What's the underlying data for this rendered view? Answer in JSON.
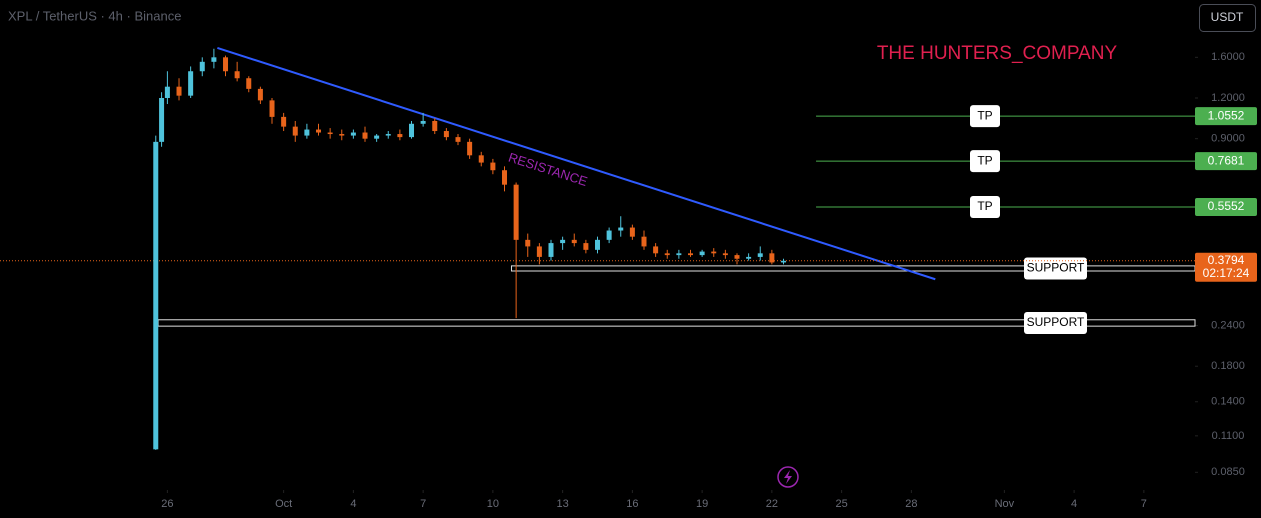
{
  "chart_data": {
    "type": "candlestick",
    "title": "XPL / TetherUS · 4h · Binance",
    "currency": "USDT",
    "watermark": "THE HUNTERS_COMPANY",
    "x": [
      25.5,
      25.75,
      26,
      26.5,
      27,
      27.5,
      28,
      28.5,
      29,
      29.5,
      30,
      30.5,
      31,
      31.5,
      32,
      32.5,
      33,
      33.5,
      34,
      34.5,
      35,
      35.5,
      36,
      36.5,
      37,
      37.5,
      38,
      38.5,
      39,
      39.5,
      40,
      40.5,
      41,
      41.5,
      42,
      42.5,
      43,
      43.5,
      44,
      44.5,
      45,
      45.5,
      46,
      46.5,
      47,
      47.5,
      48,
      48.5,
      49,
      49.5,
      50,
      50.5,
      51,
      51.5,
      52,
      52.5
    ],
    "open": [
      0.1,
      0.88,
      1.2,
      1.3,
      1.22,
      1.45,
      1.55,
      1.6,
      1.45,
      1.38,
      1.28,
      1.18,
      1.05,
      0.98,
      0.92,
      0.96,
      0.94,
      0.93,
      0.92,
      0.94,
      0.9,
      0.92,
      0.93,
      0.91,
      1.0,
      1.02,
      0.95,
      0.91,
      0.88,
      0.8,
      0.76,
      0.72,
      0.65,
      0.44,
      0.42,
      0.39,
      0.43,
      0.44,
      0.43,
      0.41,
      0.44,
      0.47,
      0.48,
      0.45,
      0.42,
      0.4,
      0.395,
      0.4,
      0.395,
      0.405,
      0.4,
      0.395,
      0.385,
      0.39,
      0.4,
      0.375
    ],
    "high": [
      0.92,
      1.25,
      1.45,
      1.38,
      1.5,
      1.6,
      1.7,
      1.62,
      1.55,
      1.4,
      1.3,
      1.2,
      1.08,
      1.02,
      1.0,
      1.0,
      0.97,
      0.96,
      0.96,
      0.98,
      0.93,
      0.95,
      0.96,
      1.02,
      1.08,
      1.04,
      0.97,
      0.93,
      0.9,
      0.82,
      0.78,
      0.74,
      0.66,
      0.46,
      0.43,
      0.44,
      0.45,
      0.46,
      0.44,
      0.45,
      0.48,
      0.52,
      0.49,
      0.47,
      0.43,
      0.41,
      0.41,
      0.41,
      0.41,
      0.415,
      0.41,
      0.4,
      0.4,
      0.42,
      0.41,
      0.385
    ],
    "low": [
      0.0996,
      0.85,
      1.15,
      1.18,
      1.2,
      1.4,
      1.48,
      1.4,
      1.35,
      1.25,
      1.15,
      1.0,
      0.95,
      0.88,
      0.9,
      0.92,
      0.9,
      0.89,
      0.9,
      0.88,
      0.88,
      0.9,
      0.89,
      0.9,
      0.98,
      0.93,
      0.89,
      0.86,
      0.78,
      0.74,
      0.7,
      0.62,
      0.253,
      0.39,
      0.37,
      0.38,
      0.41,
      0.42,
      0.4,
      0.4,
      0.43,
      0.45,
      0.44,
      0.41,
      0.39,
      0.385,
      0.385,
      0.39,
      0.39,
      0.39,
      0.385,
      0.37,
      0.38,
      0.38,
      0.37,
      0.37
    ],
    "close": [
      0.88,
      1.2,
      1.3,
      1.22,
      1.45,
      1.55,
      1.6,
      1.45,
      1.38,
      1.28,
      1.18,
      1.05,
      0.98,
      0.92,
      0.96,
      0.94,
      0.93,
      0.92,
      0.94,
      0.9,
      0.92,
      0.93,
      0.91,
      1.0,
      1.02,
      0.95,
      0.91,
      0.88,
      0.8,
      0.76,
      0.72,
      0.65,
      0.44,
      0.42,
      0.39,
      0.43,
      0.44,
      0.43,
      0.41,
      0.44,
      0.47,
      0.48,
      0.45,
      0.42,
      0.4,
      0.395,
      0.4,
      0.395,
      0.405,
      0.4,
      0.395,
      0.385,
      0.39,
      0.4,
      0.375,
      0.3794
    ],
    "up_color": "#4fc3dc",
    "down_color": "#e8641b",
    "log_scale": true,
    "grid": false,
    "ylim": [
      0.075,
      2.4
    ],
    "yticks": [
      {
        "value": 1.6,
        "label": "1.6000"
      },
      {
        "value": 1.2,
        "label": "1.2000"
      },
      {
        "value": 0.9,
        "label": "0.9000"
      },
      {
        "value": 0.24,
        "label": "0.2400"
      },
      {
        "value": 0.18,
        "label": "0.1800"
      },
      {
        "value": 0.14,
        "label": "0.1400"
      },
      {
        "value": 0.11,
        "label": "0.1100"
      },
      {
        "value": 0.085,
        "label": "0.0850"
      }
    ],
    "xlim": [
      18.8,
      70.2
    ],
    "xticks": [
      26,
      {
        "value": 31,
        "label": "Oct"
      },
      {
        "value": 34,
        "label": "4"
      },
      {
        "value": 37,
        "label": "7"
      },
      {
        "value": 40,
        "label": "10"
      },
      {
        "value": 43,
        "label": "13"
      },
      {
        "value": 46,
        "label": "16"
      },
      {
        "value": 49,
        "label": "19"
      },
      {
        "value": 52,
        "label": "22"
      },
      {
        "value": 55,
        "label": "25"
      },
      {
        "value": 58,
        "label": "28"
      },
      {
        "value": 62,
        "label": "Nov"
      },
      {
        "value": 65,
        "label": "4"
      },
      {
        "value": 68,
        "label": "7"
      }
    ],
    "resistance": {
      "label": "RESISTANCE",
      "x": [
        28.15,
        59.03
      ],
      "y": [
        1.71,
        0.333
      ],
      "color": "#2f5bff"
    },
    "take_profits": [
      {
        "label": "TP",
        "price": 1.0552,
        "start": 53.9
      },
      {
        "label": "TP",
        "price": 0.7681,
        "start": 53.9
      },
      {
        "label": "TP",
        "price": 0.5552,
        "start": 53.9
      }
    ],
    "tp_color": "#4caf50",
    "supports": [
      {
        "label": "SUPPORT",
        "low": 0.353,
        "high": 0.366,
        "start": 40.8
      },
      {
        "label": "SUPPORT",
        "low": 0.239,
        "high": 0.25,
        "start": 25.6
      }
    ],
    "last_price": {
      "value": 0.3794,
      "countdown": "02:17:24",
      "color": "#e8641b"
    }
  }
}
